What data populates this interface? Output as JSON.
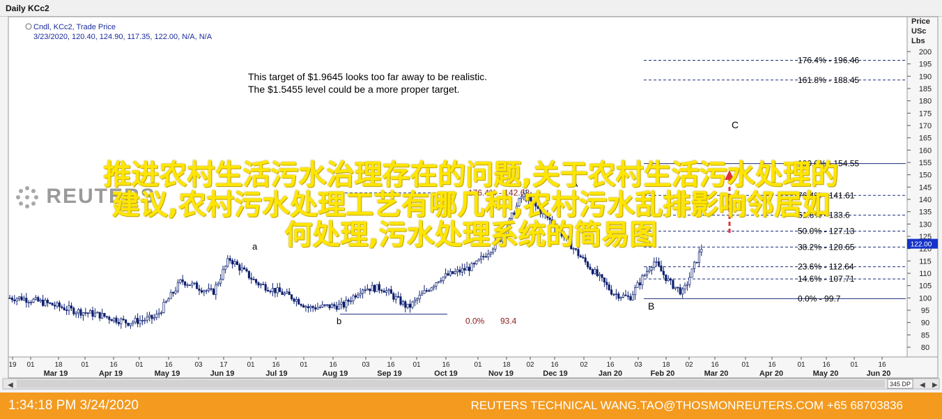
{
  "window": {
    "title": "Daily KCc2"
  },
  "legend": {
    "line1": "Cndl, KCc2, Trade Price",
    "line2": "3/23/2020, 120.40, 124.90, 117.35, 122.00, N/A, N/A"
  },
  "axis_header": [
    "Price",
    "USc",
    "Lbs"
  ],
  "last_price_label": "122.00",
  "annotation": {
    "line1": "This target of $1.9645 looks too far away to be realistic.",
    "line2": "The $1.5455 level could be a more proper target."
  },
  "wave_labels": {
    "A": "A",
    "B": "B",
    "C": "C",
    "a": "a",
    "b": "b"
  },
  "fib_levels": [
    {
      "label": "176.4% - 196.46",
      "value": 196.46
    },
    {
      "label": "161.8% - 188.45",
      "value": 188.45
    },
    {
      "label": "100.0% - 154.55",
      "value": 154.55
    },
    {
      "label": "76.4% - 141.61",
      "value": 141.61
    },
    {
      "label": "61.8% - 133.6",
      "value": 133.6
    },
    {
      "label": "50.0% - 127.13",
      "value": 127.13
    },
    {
      "label": "38.2% - 120.65",
      "value": 120.65
    },
    {
      "label": "23.6% - 112.64",
      "value": 112.64
    },
    {
      "label": "14.6% - 107.71",
      "value": 107.71
    },
    {
      "label": "0.0% - 99.7",
      "value": 99.7
    }
  ],
  "small_fib": {
    "left_label": "176.4% - 142.63",
    "zero_pct": "0.0%",
    "zero_val": "93.4",
    "colors": {
      "pct": "#8b1a1a",
      "val": "#8b1a1a"
    }
  },
  "scroll": {
    "zoom_label": "345 DP"
  },
  "status": {
    "time": "1:34:18 PM 3/24/2020",
    "source": "REUTERS TECHNICAL  WANG.TAO@THOSMONREUTERS.COM  +65 68703836"
  },
  "watermark": {
    "line1": "推进农村生活污水治理存在的问题,关于农村生活污水处理的",
    "line2": "建议,农村污水处理工艺有哪几种,农村污水乱排影响邻居如",
    "line3": "何处理,污水处理系统的简易图"
  },
  "logo_text": "REUTERS",
  "chart_data": {
    "type": "candlestick",
    "title": "Daily KCc2",
    "ylabel": "Price USc Lbs",
    "ylim": [
      75,
      200
    ],
    "y_ticks": [
      80,
      85,
      90,
      95,
      100,
      105,
      110,
      115,
      120,
      125,
      130,
      135,
      140,
      145,
      150,
      155,
      160,
      165,
      170,
      175,
      180,
      185,
      190,
      195,
      200
    ],
    "x_day_ticks": [
      "19",
      "01",
      "18",
      "01",
      "16",
      "01",
      "16",
      "03",
      "17",
      "01",
      "16",
      "01",
      "16",
      "03",
      "16",
      "01",
      "16",
      "01",
      "18",
      "02",
      "16",
      "02",
      "16",
      "03",
      "18",
      "02",
      "16",
      "01",
      "16",
      "01",
      "16",
      "01",
      "16"
    ],
    "x_month_labels": [
      "Mar 19",
      "Apr 19",
      "May 19",
      "Jun 19",
      "Jul 19",
      "Aug 19",
      "Sep 19",
      "Oct 19",
      "Nov 19",
      "Dec 19",
      "Jan 20",
      "Feb 20",
      "Mar 20",
      "Apr 20",
      "May 20",
      "Jun 20"
    ],
    "price_path": [
      {
        "date": "2019-03-19",
        "price": 100
      },
      {
        "date": "2019-04-01",
        "price": 98
      },
      {
        "date": "2019-04-16",
        "price": 95
      },
      {
        "date": "2019-05-01",
        "price": 93
      },
      {
        "date": "2019-05-16",
        "price": 90
      },
      {
        "date": "2019-05-31",
        "price": 92
      },
      {
        "date": "2019-06-14",
        "price": 107
      },
      {
        "date": "2019-07-01",
        "price": 102
      },
      {
        "date": "2019-07-10",
        "price": 116
      },
      {
        "date": "2019-07-25",
        "price": 106
      },
      {
        "date": "2019-08-14",
        "price": 100
      },
      {
        "date": "2019-08-22",
        "price": 96
      },
      {
        "date": "2019-09-10",
        "price": 97
      },
      {
        "date": "2019-09-20",
        "price": 104
      },
      {
        "date": "2019-10-01",
        "price": 104
      },
      {
        "date": "2019-10-15",
        "price": 96
      },
      {
        "date": "2019-11-01",
        "price": 108
      },
      {
        "date": "2019-11-20",
        "price": 113
      },
      {
        "date": "2019-12-05",
        "price": 125
      },
      {
        "date": "2019-12-16",
        "price": 142
      },
      {
        "date": "2020-01-02",
        "price": 130
      },
      {
        "date": "2020-01-16",
        "price": 117
      },
      {
        "date": "2020-02-03",
        "price": 102
      },
      {
        "date": "2020-02-12",
        "price": 100
      },
      {
        "date": "2020-02-25",
        "price": 115
      },
      {
        "date": "2020-03-05",
        "price": 106
      },
      {
        "date": "2020-03-12",
        "price": 102
      },
      {
        "date": "2020-03-23",
        "price": 122
      }
    ],
    "last": {
      "date": "2020-03-23",
      "open": 120.4,
      "high": 124.9,
      "low": 117.35,
      "close": 122.0
    }
  }
}
